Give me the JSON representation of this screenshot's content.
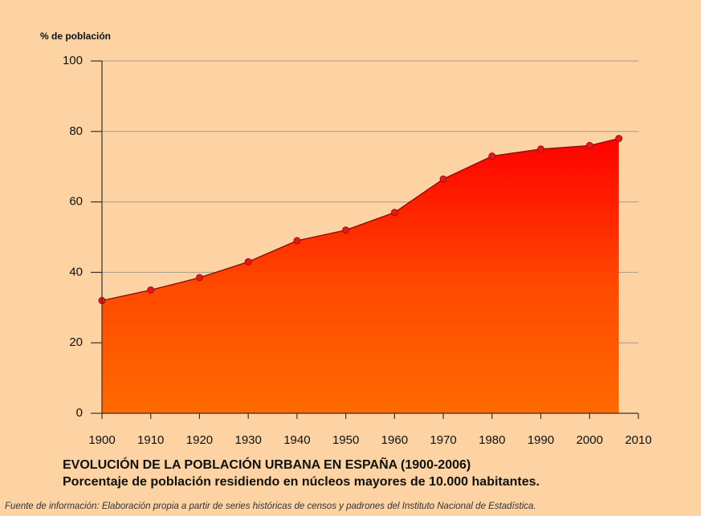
{
  "chart_data": {
    "type": "area",
    "y_label": "% de población",
    "title": "EVOLUCIÓN DE LA POBLACIÓN URBANA EN ESPAÑA (1900-2006)",
    "subtitle": "Porcentaje de población residiendo en núcleos mayores de 10.000 habitantes.",
    "source": "Fuente de información: Elaboración propia a partir de series históricas de censos y padrones del Instituto Nacional de Estadística.",
    "x": [
      1900,
      1910,
      1920,
      1930,
      1940,
      1950,
      1960,
      1970,
      1980,
      1990,
      2000,
      2006
    ],
    "values": [
      32,
      35,
      38.5,
      43,
      49,
      52,
      57,
      66.5,
      73,
      75,
      76,
      78
    ],
    "color": "#e01010",
    "marker_color": "#e81818",
    "xlim": [
      1900,
      2010
    ],
    "xticks": [
      1900,
      1910,
      1920,
      1930,
      1940,
      1950,
      1960,
      1970,
      1980,
      1990,
      2000,
      2010
    ],
    "ylim": [
      0,
      100
    ],
    "yticks": [
      0,
      20,
      40,
      60,
      80,
      100
    ],
    "grid": true
  }
}
